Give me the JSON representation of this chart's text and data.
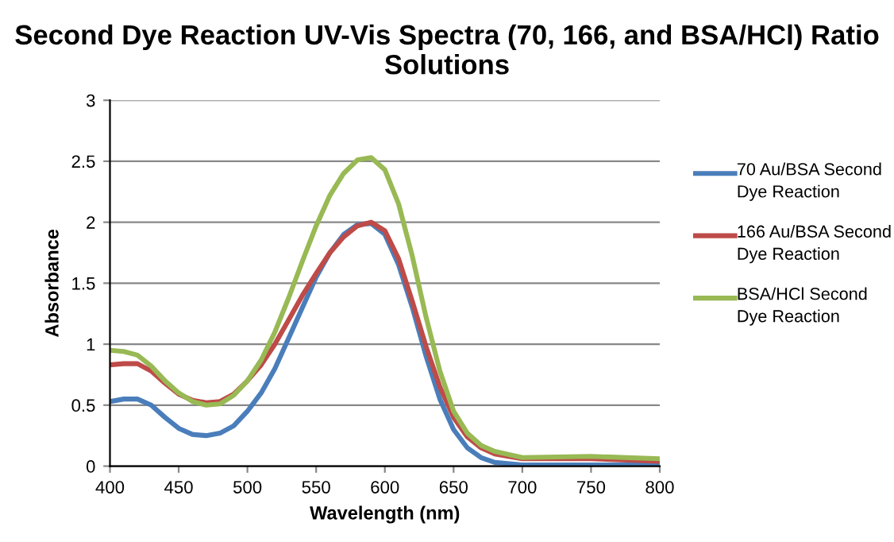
{
  "chart_data": {
    "type": "line",
    "title": "Second Dye Reaction UV-Vis Spectra (70, 166, and BSA/HCl) Ratio Solutions",
    "xlabel": "Wavelength (nm)",
    "ylabel": "Absorbance",
    "x": [
      400,
      410,
      420,
      430,
      440,
      450,
      460,
      470,
      480,
      490,
      500,
      510,
      520,
      530,
      540,
      550,
      560,
      570,
      580,
      590,
      600,
      610,
      620,
      630,
      640,
      650,
      660,
      670,
      680,
      700,
      750,
      800
    ],
    "series": [
      {
        "name": "70 Au/BSA Second Dye Reaction",
        "color": "#4a7ebb",
        "values": [
          0.53,
          0.55,
          0.55,
          0.5,
          0.4,
          0.31,
          0.26,
          0.25,
          0.27,
          0.33,
          0.45,
          0.6,
          0.8,
          1.05,
          1.3,
          1.55,
          1.75,
          1.9,
          1.98,
          1.99,
          1.9,
          1.65,
          1.3,
          0.9,
          0.55,
          0.3,
          0.15,
          0.07,
          0.03,
          0.01,
          0.01,
          0.01
        ]
      },
      {
        "name": "166 Au/BSA Second Dye Reaction",
        "color": "#be4b48",
        "values": [
          0.83,
          0.84,
          0.84,
          0.78,
          0.68,
          0.59,
          0.54,
          0.52,
          0.53,
          0.59,
          0.7,
          0.83,
          1.0,
          1.2,
          1.4,
          1.58,
          1.75,
          1.88,
          1.97,
          2.0,
          1.93,
          1.7,
          1.35,
          0.98,
          0.65,
          0.4,
          0.24,
          0.15,
          0.1,
          0.06,
          0.06,
          0.04
        ]
      },
      {
        "name": "BSA/HCl Second Dye Reaction",
        "color": "#98b954",
        "values": [
          0.95,
          0.94,
          0.91,
          0.82,
          0.7,
          0.6,
          0.53,
          0.5,
          0.51,
          0.58,
          0.7,
          0.87,
          1.1,
          1.38,
          1.68,
          1.97,
          2.22,
          2.4,
          2.51,
          2.53,
          2.43,
          2.15,
          1.72,
          1.22,
          0.78,
          0.45,
          0.27,
          0.17,
          0.12,
          0.07,
          0.08,
          0.06
        ]
      }
    ],
    "xlim": [
      400,
      800
    ],
    "xticks": [
      400,
      450,
      500,
      550,
      600,
      650,
      700,
      750,
      800
    ],
    "ylim": [
      0,
      3
    ],
    "yticks": [
      0,
      0.5,
      1,
      1.5,
      2,
      2.5,
      3
    ],
    "grid": "y",
    "legend": "right",
    "marker": "none",
    "line_style": "solid"
  }
}
